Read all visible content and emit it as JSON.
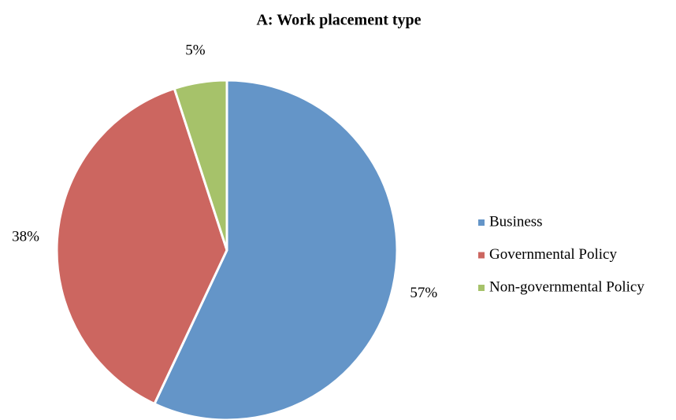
{
  "chart_data": {
    "type": "pie",
    "title": "A: Work placement type",
    "categories": [
      "Business",
      "Governmental Policy",
      "Non-governmental Policy"
    ],
    "values": [
      57,
      38,
      5
    ],
    "value_labels": [
      "57%",
      "38%",
      "5%"
    ],
    "colors": [
      "#6495c8",
      "#cc6660",
      "#a6c26a"
    ],
    "legend": "right"
  }
}
